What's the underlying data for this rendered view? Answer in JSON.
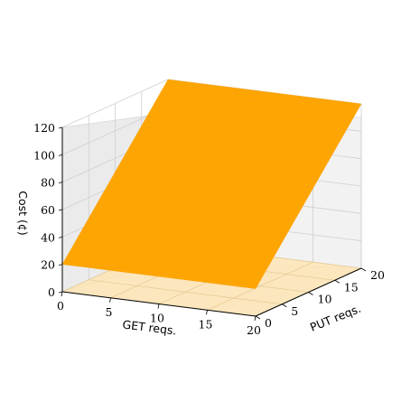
{
  "chart_data": {
    "type": "surface3d",
    "x_label": "GET reqs.",
    "y_label": "PUT reqs.",
    "z_label": "Cost (¢)",
    "x_ticks": [
      "0",
      "5",
      "10",
      "15",
      "20"
    ],
    "y_ticks": [
      "0",
      "5",
      "10",
      "15",
      "20"
    ],
    "z_ticks": [
      "0",
      "20",
      "40",
      "60",
      "80",
      "100",
      "120"
    ],
    "x_range": [
      0,
      20
    ],
    "y_range": [
      0,
      20
    ],
    "z_range": [
      0,
      120
    ],
    "surface": {
      "formula": "cost = 20 + 5 × PUT reqs.",
      "corners": [
        {
          "get": 0,
          "put": 0,
          "cost": 20
        },
        {
          "get": 20,
          "put": 0,
          "cost": 20
        },
        {
          "get": 20,
          "put": 20,
          "cost": 120
        },
        {
          "get": 0,
          "put": 20,
          "cost": 120
        }
      ]
    },
    "grid": true,
    "colors": {
      "surface": "#ffa500",
      "floor_projection": "#ffe3b0",
      "pane": "#f2f2f2",
      "grid": "#cfcfcf"
    }
  }
}
